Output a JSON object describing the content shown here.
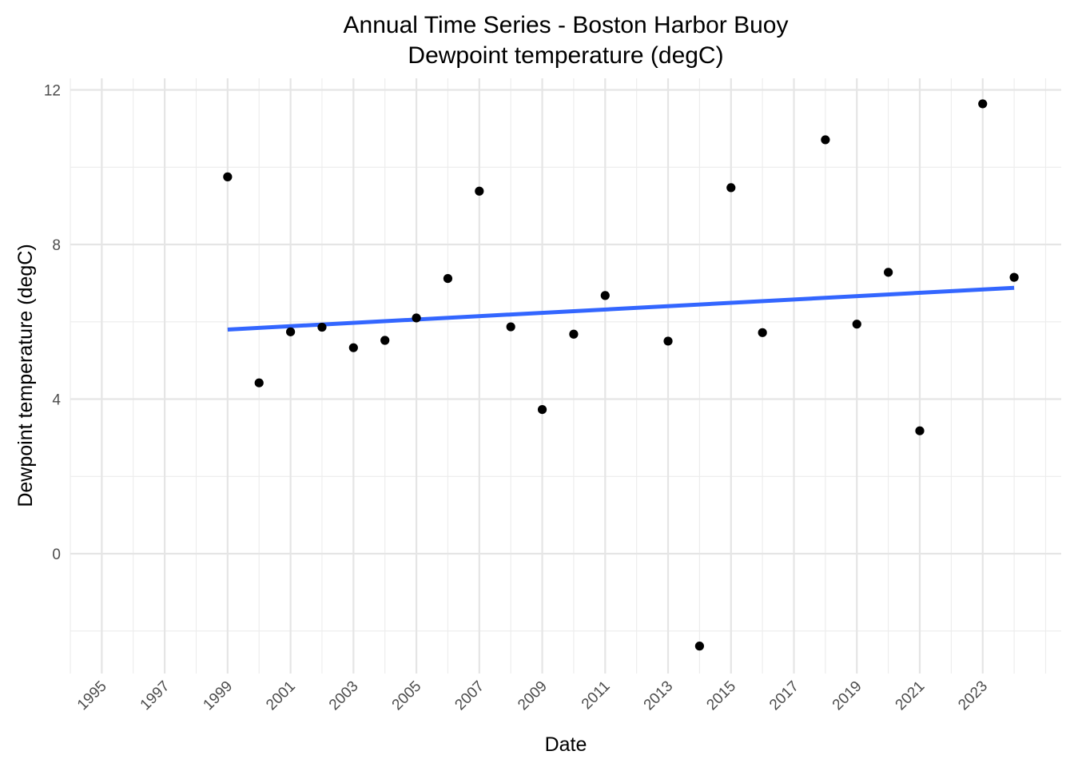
{
  "chart_data": {
    "type": "scatter",
    "title": "Annual Time Series - Boston Harbor Buoy",
    "subtitle": "Dewpoint temperature (degC)",
    "xlabel": "Date",
    "ylabel": "Dewpoint temperature (degC)",
    "x_axis": {
      "type": "date",
      "range": [
        "1994-01-01",
        "2025-07-01"
      ],
      "tick_labels": [
        "1995",
        "1997",
        "1999",
        "2001",
        "2003",
        "2005",
        "2007",
        "2009",
        "2011",
        "2013",
        "2015",
        "2017",
        "2019",
        "2021",
        "2023"
      ],
      "tick_label_rotation": 45
    },
    "y_axis": {
      "range": [
        -3.1,
        12.3
      ],
      "ticks": [
        0,
        4,
        8,
        12
      ],
      "tick_labels": [
        "0",
        "4",
        "8",
        "12"
      ]
    },
    "grid": true,
    "legend": "none",
    "series": [
      {
        "type": "scatter",
        "color": "#000000",
        "points": [
          {
            "x": "1999-01-01",
            "y": 9.75
          },
          {
            "x": "2000-01-01",
            "y": 4.42
          },
          {
            "x": "2001-01-01",
            "y": 5.74
          },
          {
            "x": "2002-01-01",
            "y": 5.86
          },
          {
            "x": "2003-01-01",
            "y": 5.33
          },
          {
            "x": "2004-01-01",
            "y": 5.52
          },
          {
            "x": "2005-01-01",
            "y": 6.1
          },
          {
            "x": "2006-01-01",
            "y": 7.12
          },
          {
            "x": "2007-01-01",
            "y": 9.38
          },
          {
            "x": "2008-01-01",
            "y": 5.87
          },
          {
            "x": "2009-01-01",
            "y": 3.73
          },
          {
            "x": "2010-01-01",
            "y": 5.68
          },
          {
            "x": "2011-01-01",
            "y": 6.68
          },
          {
            "x": "2013-01-01",
            "y": 5.5
          },
          {
            "x": "2014-01-01",
            "y": -2.39
          },
          {
            "x": "2015-01-01",
            "y": 9.47
          },
          {
            "x": "2016-01-01",
            "y": 5.72
          },
          {
            "x": "2018-01-01",
            "y": 10.71
          },
          {
            "x": "2019-01-01",
            "y": 5.94
          },
          {
            "x": "2020-01-01",
            "y": 7.28
          },
          {
            "x": "2021-01-01",
            "y": 3.18
          },
          {
            "x": "2023-01-01",
            "y": 11.64
          },
          {
            "x": "2024-01-01",
            "y": 7.15
          }
        ]
      },
      {
        "type": "line",
        "role": "linear trend",
        "color": "#3366FF",
        "points": [
          {
            "x": "1999-01-01",
            "y": 5.8
          },
          {
            "x": "2024-01-01",
            "y": 6.88
          }
        ]
      }
    ]
  }
}
